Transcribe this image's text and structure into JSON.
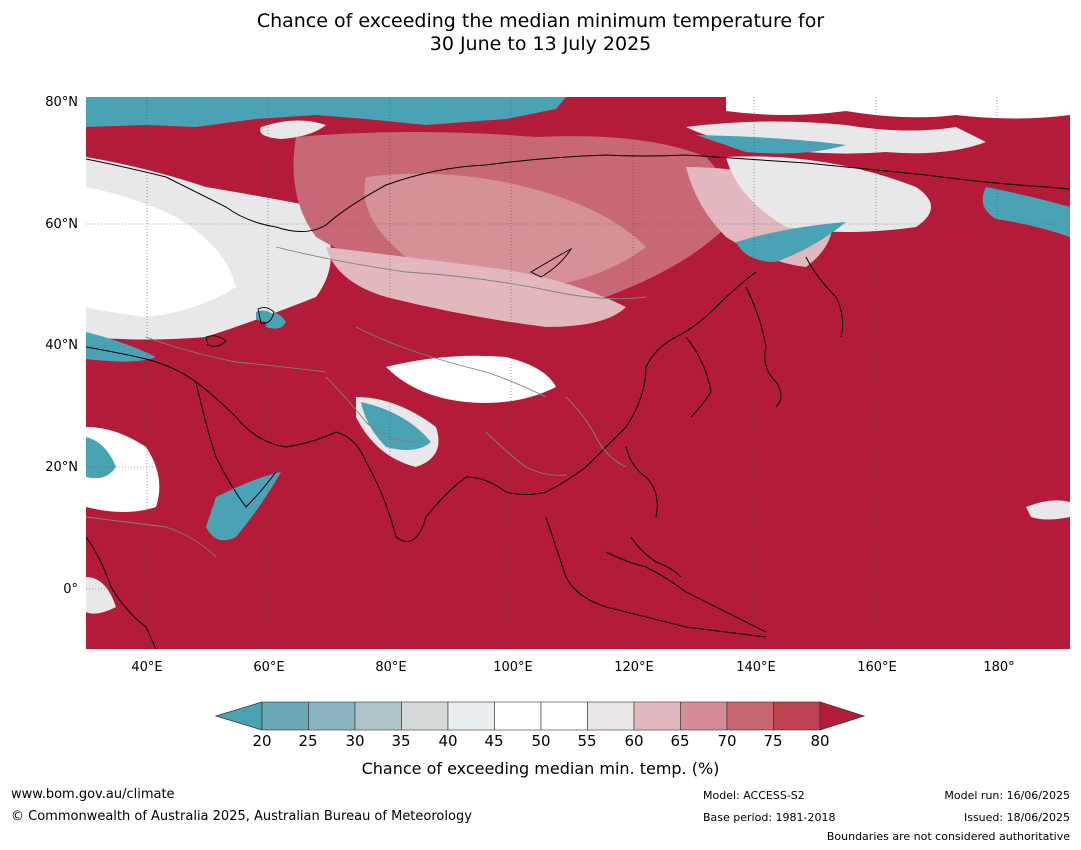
{
  "title": {
    "line1": "Chance of exceeding the median minimum temperature for",
    "line2": "30 June to 13 July 2025"
  },
  "map": {
    "latitude_labels": [
      "80°N",
      "60°N",
      "40°N",
      "20°N",
      "0°"
    ],
    "longitude_labels": [
      "40°E",
      "60°E",
      "80°E",
      "100°E",
      "120°E",
      "140°E",
      "160°E",
      "180°"
    ],
    "colors": {
      "background": "#b31b38",
      "very_high": "#c23c4f",
      "high": "#c86776",
      "mid_high": "#d59098",
      "mid": "#e2b8be",
      "neutral": "#ffffff",
      "light_grey": "#e8e8ea",
      "low": "#4aa3b5",
      "mid_low": "#7fb1bf",
      "coast": "#000000",
      "border": "#808080"
    }
  },
  "colorbar": {
    "ticks": [
      "20",
      "25",
      "30",
      "35",
      "40",
      "45",
      "50",
      "55",
      "60",
      "65",
      "70",
      "75",
      "80"
    ],
    "colors": [
      "#4aa3b5",
      "#6aa8b6",
      "#8bb4c0",
      "#adc3c9",
      "#d4d8d9",
      "#e9eff1",
      "#ffffff",
      "#ffffff",
      "#ebe6e8",
      "#e0b8bd",
      "#d48d96",
      "#c76670",
      "#bf4251",
      "#b31b38"
    ],
    "title": "Chance of exceeding median min. temp. (%)"
  },
  "footer": {
    "website": "www.bom.gov.au/climate",
    "copyright": "© Commonwealth of Australia 2025, Australian Bureau of Meteorology",
    "model": "Model: ACCESS-S2",
    "base_period": "Base period: 1981-2018",
    "model_run": "Model run: 16/06/2025",
    "issued": "Issued: 18/06/2025",
    "disclaimer": "Boundaries are not considered authoritative"
  }
}
